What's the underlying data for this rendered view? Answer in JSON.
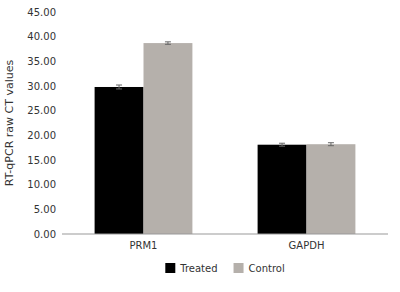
{
  "chart_data": {
    "type": "bar",
    "categories": [
      "PRM1",
      "GAPDH"
    ],
    "series": [
      {
        "name": "Treated",
        "color": "#000000",
        "values": [
          29.8,
          18.1
        ],
        "errors": [
          0.4,
          0.3
        ]
      },
      {
        "name": "Control",
        "color": "#b5b0ab",
        "values": [
          38.7,
          18.2
        ],
        "errors": [
          0.25,
          0.3
        ]
      }
    ],
    "ylabel": "RT-qPCR raw CT values",
    "ylim": [
      0,
      45
    ],
    "yticks": [
      {
        "value": 0.0,
        "label": "0.00"
      },
      {
        "value": 5.0,
        "label": "5.00"
      },
      {
        "value": 10.0,
        "label": "10.00"
      },
      {
        "value": 15.0,
        "label": "15.00"
      },
      {
        "value": 20.0,
        "label": "20.00"
      },
      {
        "value": 25.0,
        "label": "25.00"
      },
      {
        "value": 30.0,
        "label": "30.00"
      },
      {
        "value": 35.0,
        "label": "35.00"
      },
      {
        "value": 40.0,
        "label": "40.00"
      },
      {
        "value": 45.0,
        "label": "45.00"
      }
    ],
    "legend": "bottom"
  }
}
